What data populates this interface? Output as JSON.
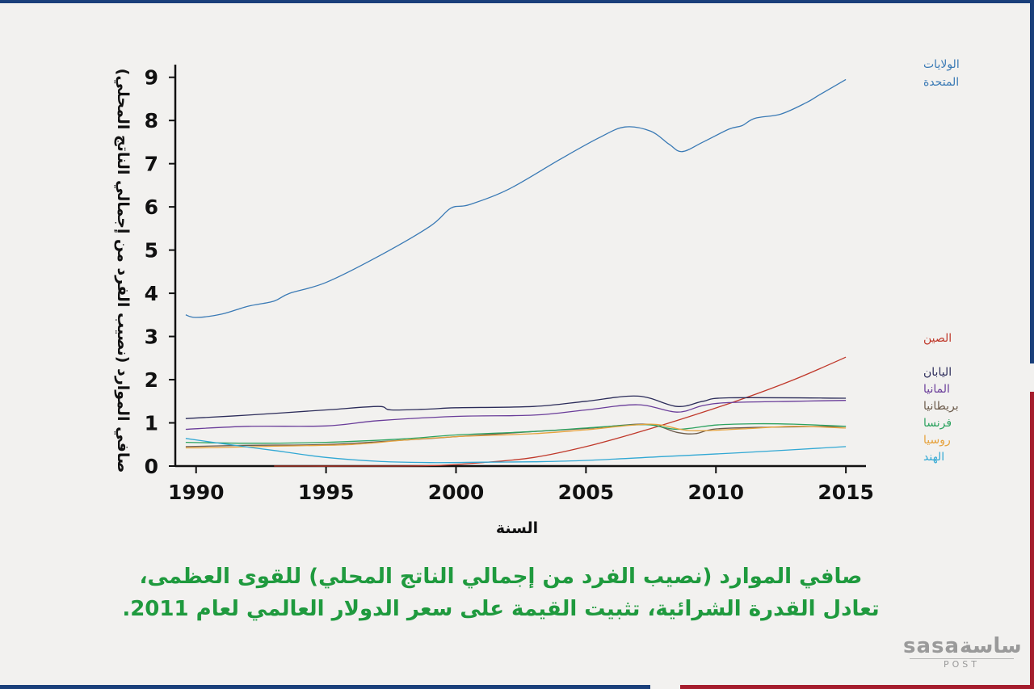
{
  "caption": {
    "line1": "صافي الموارد (نصيب الفرد من إجمالي الناتج المحلي) للقوى العظمى،",
    "line2": "تعادل القدرة الشرائية، تثبيت القيمة على سعر الدولار العالمي لعام 2011."
  },
  "logo": {
    "main": "sasaساسة",
    "sub": "POST"
  },
  "chart_data": {
    "type": "line",
    "title": "",
    "xlabel": "السنة",
    "ylabel": "صافي الموارد (نصيب الفرد من إجمالي الناتج المحلي)",
    "xlim": [
      1989.2,
      2015.4
    ],
    "ylim": [
      0,
      9.2
    ],
    "xticks": [
      1990,
      1995,
      2000,
      2005,
      2010,
      2015
    ],
    "yticks": [
      0,
      1,
      2,
      3,
      4,
      5,
      6,
      7,
      8,
      9
    ],
    "grid": false,
    "legend": "right-labels",
    "series": [
      {
        "name": "الولايات المتحدة",
        "label_lines": [
          "الولايات",
          "المتحدة"
        ],
        "color": "#3a7ab5",
        "x": [
          1989.6,
          1990,
          1991,
          1992,
          1993,
          1993.6,
          1995,
          1997,
          1999,
          1999.8,
          2000.5,
          2002,
          2004,
          2005.5,
          2006.5,
          2007.5,
          2008.2,
          2008.7,
          2009.5,
          2010.5,
          2011,
          2011.5,
          2012.5,
          2013.5,
          2014,
          2015
        ],
        "y": [
          3.5,
          3.44,
          3.52,
          3.7,
          3.82,
          4.0,
          4.25,
          4.85,
          5.55,
          5.97,
          6.05,
          6.4,
          7.1,
          7.6,
          7.85,
          7.75,
          7.45,
          7.28,
          7.5,
          7.8,
          7.88,
          8.05,
          8.15,
          8.42,
          8.6,
          8.95
        ]
      },
      {
        "name": "الصين",
        "label_lines": [
          "الصين"
        ],
        "color": "#c0392b",
        "x": [
          1993,
          1996,
          1999,
          2001,
          2003,
          2005,
          2007,
          2009,
          2011,
          2013,
          2015
        ],
        "y": [
          0.0,
          0.0,
          0.01,
          0.08,
          0.2,
          0.45,
          0.78,
          1.15,
          1.55,
          2.0,
          2.52
        ]
      },
      {
        "name": "اليابان",
        "label_lines": [
          "اليابان"
        ],
        "color": "#2c2c5a",
        "x": [
          1989.6,
          1992,
          1995,
          1997,
          1997.5,
          1999,
          2000,
          2003,
          2005,
          2007,
          2008.5,
          2009.5,
          2010.5,
          2015
        ],
        "y": [
          1.1,
          1.18,
          1.3,
          1.38,
          1.3,
          1.32,
          1.35,
          1.38,
          1.5,
          1.62,
          1.38,
          1.5,
          1.58,
          1.57
        ]
      },
      {
        "name": "المانيا",
        "label_lines": [
          "المانيا"
        ],
        "color": "#6a3d9a",
        "x": [
          1989.6,
          1992,
          1995,
          1997,
          2000,
          2003,
          2005,
          2007,
          2008.5,
          2009.5,
          2010.5,
          2013,
          2015
        ],
        "y": [
          0.85,
          0.92,
          0.93,
          1.05,
          1.15,
          1.18,
          1.3,
          1.42,
          1.25,
          1.4,
          1.47,
          1.5,
          1.52
        ]
      },
      {
        "name": "بريطانيا",
        "label_lines": [
          "بريطانيا"
        ],
        "color": "#6b5a4a",
        "x": [
          1989.6,
          1992,
          1995,
          1998,
          2000,
          2003,
          2005,
          2007.3,
          2008.5,
          2009.2,
          2010,
          2012,
          2015
        ],
        "y": [
          0.45,
          0.48,
          0.5,
          0.6,
          0.68,
          0.8,
          0.87,
          0.97,
          0.78,
          0.75,
          0.86,
          0.9,
          0.92
        ]
      },
      {
        "name": "فرنسا",
        "label_lines": [
          "فرنسا"
        ],
        "color": "#2ca25f",
        "x": [
          1989.6,
          1992,
          1995,
          1998,
          2000,
          2003,
          2005,
          2007.3,
          2008.5,
          2010,
          2011.5,
          2013,
          2015
        ],
        "y": [
          0.55,
          0.53,
          0.55,
          0.63,
          0.72,
          0.8,
          0.88,
          0.96,
          0.85,
          0.95,
          0.98,
          0.97,
          0.92
        ]
      },
      {
        "name": "روسيا",
        "label_lines": [
          "روسيا"
        ],
        "color": "#e6a23c",
        "x": [
          1989.6,
          1991,
          1993,
          1996,
          1998,
          2000,
          2003,
          2005,
          2007.5,
          2009,
          2011,
          2013,
          2015
        ],
        "y": [
          0.42,
          0.43,
          0.46,
          0.5,
          0.6,
          0.68,
          0.75,
          0.84,
          0.97,
          0.82,
          0.86,
          0.92,
          0.88
        ]
      },
      {
        "name": "الهند",
        "label_lines": [
          "الهند"
        ],
        "color": "#31a8d4",
        "x": [
          1989.6,
          1991,
          1993,
          1995,
          1997,
          1999,
          2001,
          2003,
          2005,
          2008,
          2011,
          2015
        ],
        "y": [
          0.64,
          0.52,
          0.36,
          0.2,
          0.11,
          0.08,
          0.09,
          0.1,
          0.13,
          0.22,
          0.31,
          0.45
        ]
      }
    ]
  }
}
